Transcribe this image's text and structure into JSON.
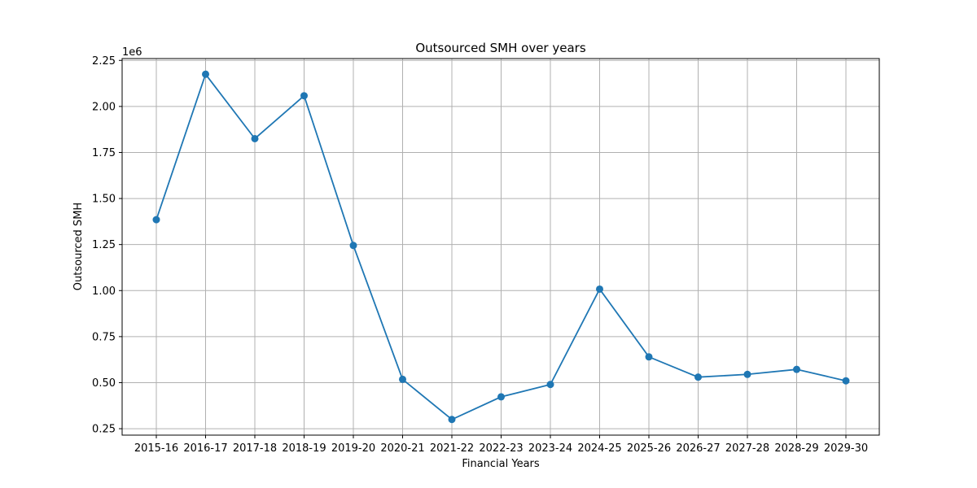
{
  "chart_data": {
    "type": "line",
    "title": "Outsourced SMH over years",
    "xlabel": "Financial Years",
    "ylabel": "Outsourced SMH",
    "y_offset_label": "1e6",
    "categories": [
      "2015-16",
      "2016-17",
      "2017-18",
      "2018-19",
      "2019-20",
      "2020-21",
      "2021-22",
      "2022-23",
      "2023-24",
      "2024-25",
      "2025-26",
      "2026-27",
      "2027-28",
      "2028-29",
      "2029-30"
    ],
    "series": [
      {
        "color": "#1f77b4",
        "marker": "circle",
        "values": [
          1385000,
          2175000,
          1825000,
          2058000,
          1245000,
          518000,
          300000,
          423000,
          490000,
          1008000,
          640000,
          530000,
          545000,
          572000,
          510000
        ]
      }
    ],
    "y_ticks": [
      "0.25",
      "0.50",
      "0.75",
      "1.00",
      "1.25",
      "1.50",
      "1.75",
      "2.00",
      "2.25"
    ],
    "y_tick_values": [
      250000,
      500000,
      750000,
      1000000,
      1250000,
      1500000,
      1750000,
      2000000,
      2250000
    ],
    "ylim": [
      215000,
      2260000
    ],
    "grid": true
  }
}
